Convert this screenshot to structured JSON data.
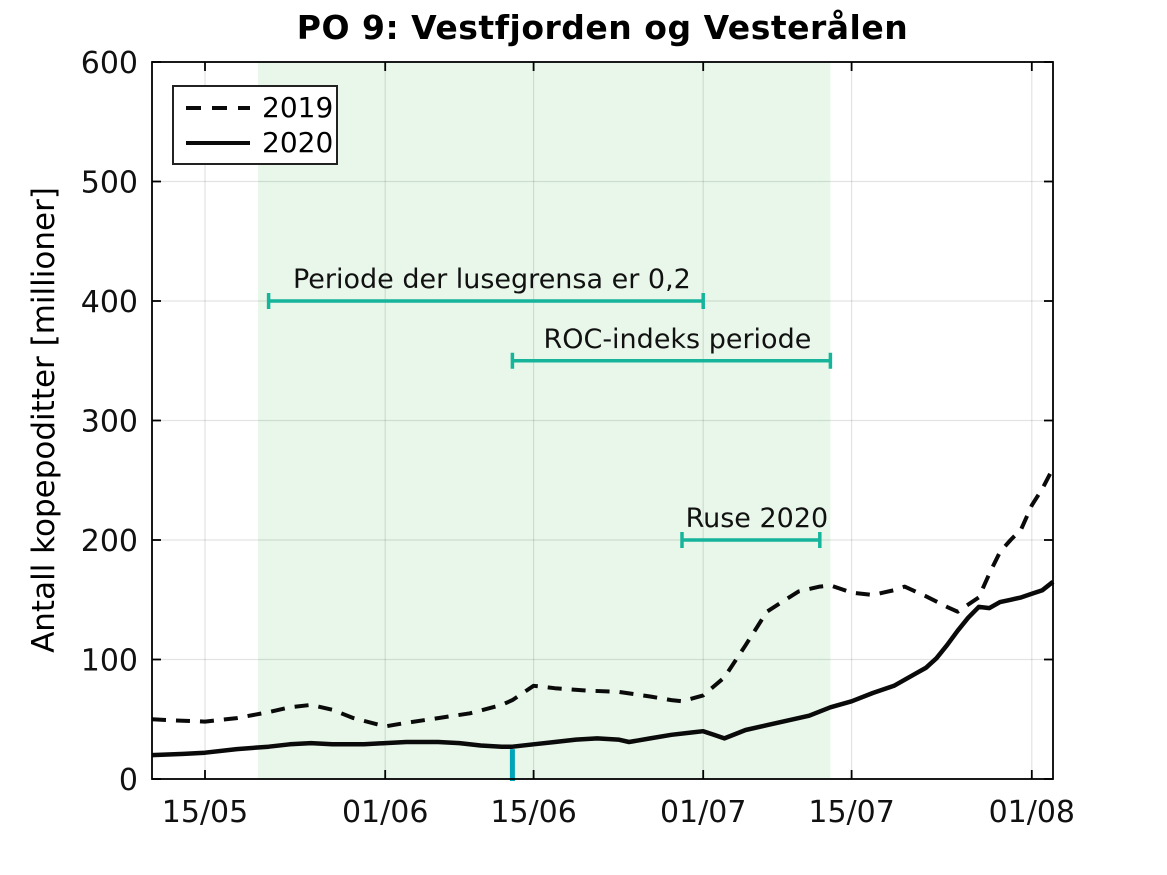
{
  "chart_data": {
    "type": "line",
    "title": "PO 9: Vestfjorden og Vesterålen",
    "ylabel": "Antall kopepoditter [millioner]",
    "xlabel": "",
    "ylim": [
      0,
      600
    ],
    "yticks": [
      0,
      100,
      200,
      300,
      400,
      500,
      600
    ],
    "xticks": [
      "15/05",
      "01/06",
      "15/06",
      "01/07",
      "15/07",
      "01/08"
    ],
    "x_domain": [
      "10/05",
      "03/08"
    ],
    "grid": true,
    "background_color": "#ffffff",
    "shaded_region": {
      "from": "20/05",
      "to": "13/07",
      "color": "#e8f7ea"
    },
    "legend": {
      "position": "top-left",
      "entries": [
        {
          "label": "2019",
          "line_style": "dashed",
          "color": "#0a0a0a"
        },
        {
          "label": "2020",
          "line_style": "solid",
          "color": "#0a0a0a"
        }
      ]
    },
    "annotations": [
      {
        "label": "Periode der lusegrensa er 0,2",
        "y": 400,
        "from": "21/05",
        "to": "01/07",
        "color": "#16b49a"
      },
      {
        "label": "ROC-indeks periode",
        "y": 350,
        "from": "13/06",
        "to": "13/07",
        "color": "#16b49a"
      },
      {
        "label": "Ruse 2020",
        "y": 200,
        "from": "29/06",
        "to": "12/07",
        "color": "#16b49a"
      }
    ],
    "event_marker": {
      "date": "13/06",
      "y_from": 0,
      "y_to": 25,
      "color": "#00a3b8"
    },
    "series": [
      {
        "name": "2019",
        "style": "dashed",
        "color": "#0a0a0a",
        "points": [
          [
            "10/05",
            50
          ],
          [
            "12/05",
            49
          ],
          [
            "15/05",
            48
          ],
          [
            "18/05",
            51
          ],
          [
            "21/05",
            56
          ],
          [
            "23/05",
            60
          ],
          [
            "25/05",
            62
          ],
          [
            "27/05",
            58
          ],
          [
            "29/05",
            51
          ],
          [
            "01/06",
            44
          ],
          [
            "03/06",
            47
          ],
          [
            "06/06",
            51
          ],
          [
            "09/06",
            55
          ],
          [
            "12/06",
            62
          ],
          [
            "13/06",
            66
          ],
          [
            "15/06",
            78
          ],
          [
            "17/06",
            76
          ],
          [
            "20/06",
            74
          ],
          [
            "23/06",
            73
          ],
          [
            "26/06",
            69
          ],
          [
            "28/06",
            66
          ],
          [
            "29/06",
            65
          ],
          [
            "01/07",
            70
          ],
          [
            "03/07",
            85
          ],
          [
            "05/07",
            112
          ],
          [
            "07/07",
            140
          ],
          [
            "10/07",
            157
          ],
          [
            "12/07",
            161
          ],
          [
            "13/07",
            162
          ],
          [
            "15/07",
            156
          ],
          [
            "17/07",
            154
          ],
          [
            "19/07",
            158
          ],
          [
            "20/07",
            161
          ],
          [
            "22/07",
            153
          ],
          [
            "24/07",
            144
          ],
          [
            "25/07",
            140
          ],
          [
            "27/07",
            152
          ],
          [
            "28/07",
            172
          ],
          [
            "29/07",
            190
          ],
          [
            "30/07",
            200
          ],
          [
            "31/07",
            209
          ],
          [
            "01/08",
            229
          ],
          [
            "02/08",
            243
          ],
          [
            "03/08",
            260
          ]
        ]
      },
      {
        "name": "2020",
        "style": "solid",
        "color": "#0a0a0a",
        "points": [
          [
            "10/05",
            20
          ],
          [
            "13/05",
            21
          ],
          [
            "15/05",
            22
          ],
          [
            "18/05",
            25
          ],
          [
            "21/05",
            27
          ],
          [
            "23/05",
            29
          ],
          [
            "25/05",
            30
          ],
          [
            "27/05",
            29
          ],
          [
            "30/05",
            29
          ],
          [
            "01/06",
            30
          ],
          [
            "03/06",
            31
          ],
          [
            "06/06",
            31
          ],
          [
            "08/06",
            30
          ],
          [
            "10/06",
            28
          ],
          [
            "12/06",
            27
          ],
          [
            "13/06",
            27
          ],
          [
            "15/06",
            29
          ],
          [
            "17/06",
            31
          ],
          [
            "19/06",
            33
          ],
          [
            "21/06",
            34
          ],
          [
            "23/06",
            33
          ],
          [
            "24/06",
            31
          ],
          [
            "26/06",
            34
          ],
          [
            "28/06",
            37
          ],
          [
            "30/06",
            39
          ],
          [
            "01/07",
            40
          ],
          [
            "02/07",
            37
          ],
          [
            "03/07",
            34
          ],
          [
            "05/07",
            41
          ],
          [
            "07/07",
            45
          ],
          [
            "09/07",
            49
          ],
          [
            "11/07",
            53
          ],
          [
            "13/07",
            60
          ],
          [
            "15/07",
            65
          ],
          [
            "17/07",
            72
          ],
          [
            "19/07",
            78
          ],
          [
            "20/07",
            83
          ],
          [
            "21/07",
            88
          ],
          [
            "22/07",
            93
          ],
          [
            "23/07",
            101
          ],
          [
            "24/07",
            112
          ],
          [
            "25/07",
            124
          ],
          [
            "26/07",
            135
          ],
          [
            "27/07",
            144
          ],
          [
            "28/07",
            143
          ],
          [
            "29/07",
            148
          ],
          [
            "30/07",
            150
          ],
          [
            "31/07",
            152
          ],
          [
            "01/08",
            155
          ],
          [
            "02/08",
            158
          ],
          [
            "03/08",
            165
          ]
        ]
      }
    ]
  }
}
